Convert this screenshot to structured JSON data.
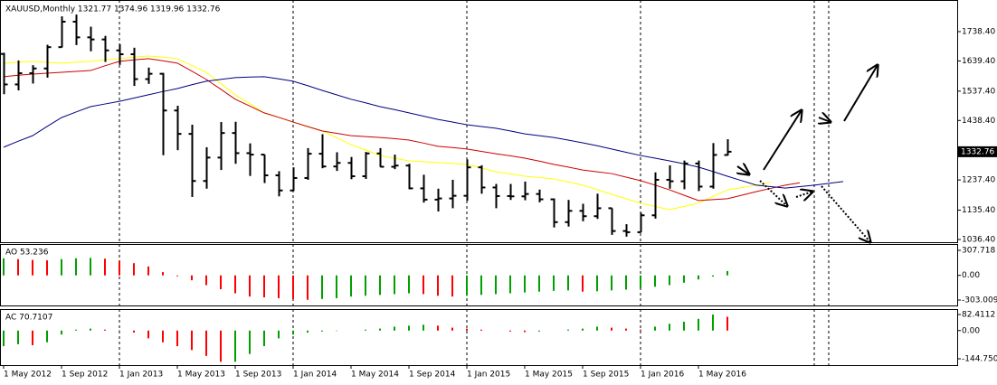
{
  "chart_data": [
    {
      "type": "ohlc",
      "title": "XAUUSD,Monthly  1321.77 1374.96 1319.96 1332.76",
      "categories": [
        "1 May 2012",
        null,
        null,
        null,
        "1 Sep 2012",
        null,
        null,
        null,
        "1 Jan 2013",
        null,
        null,
        null,
        "1 May 2013",
        null,
        null,
        null,
        "1 Sep 2013",
        null,
        null,
        null,
        "1 Jan 2014",
        null,
        null,
        null,
        "1 May 2014",
        null,
        null,
        null,
        "1 Sep 2014",
        null,
        null,
        null,
        "1 Jan 2015",
        null,
        null,
        null,
        "1 May 2015",
        null,
        null,
        null,
        "1 Sep 2015",
        null,
        null,
        null,
        "1 Jan 2016",
        null,
        null,
        null,
        "1 May 2016",
        null,
        null,
        null,
        null,
        null,
        null,
        null,
        null,
        null,
        null,
        null
      ],
      "open": [
        1663,
        1560,
        1598,
        1614,
        1686,
        1772,
        1719,
        1712,
        1675,
        1662,
        1578,
        1596,
        1472,
        1393,
        1234,
        1313,
        1396,
        1328,
        1323,
        1253,
        1202,
        1244,
        1326,
        1283,
        1295,
        1250,
        1327,
        1282,
        1286,
        1209,
        1171,
        1175,
        1184,
        1280,
        1212,
        1183,
        1182,
        1190,
        1172,
        1095,
        1133,
        1115,
        1142,
        1065,
        1061,
        1118,
        1238,
        1233,
        1293,
        1215,
        1321.77,
        null,
        null,
        null,
        null,
        null,
        null,
        null,
        null,
        null
      ],
      "high": [
        1667,
        1641,
        1625,
        1694,
        1790,
        1796,
        1755,
        1724,
        1696,
        1684,
        1617,
        1599,
        1488,
        1424,
        1348,
        1433,
        1434,
        1361,
        1323,
        1267,
        1280,
        1345,
        1392,
        1331,
        1315,
        1332,
        1345,
        1323,
        1292,
        1255,
        1208,
        1238,
        1307,
        1287,
        1224,
        1224,
        1232,
        1205,
        1175,
        1170,
        1157,
        1191,
        1142,
        1088,
        1127,
        1263,
        1287,
        1303,
        1303,
        1362,
        1374.96,
        null,
        null,
        null,
        null,
        null,
        null,
        null,
        null,
        null
      ],
      "low": [
        1527,
        1540,
        1563,
        1583,
        1685,
        1693,
        1672,
        1636,
        1626,
        1555,
        1562,
        1321,
        1338,
        1180,
        1208,
        1271,
        1292,
        1251,
        1227,
        1182,
        1200,
        1238,
        1277,
        1268,
        1240,
        1241,
        1281,
        1274,
        1206,
        1161,
        1131,
        1142,
        1167,
        1191,
        1142,
        1170,
        1169,
        1162,
        1077,
        1080,
        1098,
        1106,
        1052,
        1046,
        1061,
        1107,
        1208,
        1206,
        1200,
        1208,
        1319.96,
        null,
        null,
        null,
        null,
        null,
        null,
        null,
        null,
        null
      ],
      "close": [
        1560,
        1598,
        1614,
        1686,
        1772,
        1719,
        1712,
        1675,
        1662,
        1578,
        1596,
        1472,
        1393,
        1234,
        1313,
        1396,
        1328,
        1323,
        1253,
        1202,
        1244,
        1326,
        1283,
        1295,
        1250,
        1327,
        1282,
        1286,
        1209,
        1171,
        1175,
        1184,
        1280,
        1212,
        1183,
        1182,
        1190,
        1172,
        1095,
        1133,
        1115,
        1142,
        1065,
        1061,
        1118,
        1238,
        1233,
        1293,
        1215,
        1322,
        1332.76,
        null,
        null,
        null,
        null,
        null,
        null,
        null,
        null,
        null
      ],
      "bar_color": "#000000",
      "lines": [
        {
          "color": "#ffff00",
          "values": [
            1632,
            1635,
            1638,
            1635,
            1632,
            1635,
            1638,
            1643,
            1647,
            1652,
            1656,
            1652,
            1647,
            1624,
            1601,
            1563,
            1525,
            1495,
            1464,
            1449,
            1433,
            1418,
            1403,
            1380,
            1357,
            1339,
            1320,
            1311,
            1302,
            1299,
            1296,
            1293,
            1290,
            1278,
            1265,
            1258,
            1250,
            1246,
            1241,
            1231,
            1220,
            1205,
            1189,
            1174,
            1159,
            1148,
            1137,
            1148,
            1159,
            1182,
            1204,
            1212,
            1220,
            1230,
            null,
            null,
            null,
            null,
            null,
            null
          ]
        },
        {
          "color": "#cc0000",
          "values": [
            1586,
            1591,
            1595,
            1598,
            1601,
            1604,
            1607,
            1623,
            1638,
            1643,
            1647,
            1640,
            1632,
            1605,
            1577,
            1544,
            1510,
            1487,
            1464,
            1449,
            1433,
            1418,
            1403,
            1395,
            1387,
            1384,
            1381,
            1377,
            1372,
            1362,
            1351,
            1347,
            1342,
            1334,
            1326,
            1319,
            1311,
            1301,
            1290,
            1281,
            1271,
            1265,
            1259,
            1247,
            1235,
            1220,
            1204,
            1186,
            1168,
            1171,
            1174,
            1186,
            1198,
            1209,
            1220,
            1228,
            null,
            null,
            null,
            null
          ]
        },
        {
          "color": "#000080",
          "values": [
            1348,
            1368,
            1387,
            1418,
            1448,
            1467,
            1485,
            1494,
            1503,
            1514,
            1525,
            1536,
            1546,
            1559,
            1571,
            1577,
            1583,
            1585,
            1586,
            1579,
            1571,
            1556,
            1540,
            1525,
            1510,
            1498,
            1485,
            1475,
            1464,
            1453,
            1442,
            1433,
            1424,
            1418,
            1412,
            1403,
            1393,
            1387,
            1381,
            1372,
            1363,
            1353,
            1342,
            1331,
            1320,
            1311,
            1302,
            1292,
            1281,
            1266,
            1250,
            1235,
            1220,
            1215,
            1210,
            1215,
            1220,
            1226,
            1232,
            null
          ]
        }
      ],
      "ylim": [
        1027.2,
        1845.2
      ],
      "yticks": [
        {
          "value": 1738.4,
          "label": "1738.40"
        },
        {
          "value": 1639.4,
          "label": "1639.40"
        },
        {
          "value": 1537.4,
          "label": "1537.40"
        },
        {
          "value": 1438.4,
          "label": "1438.40"
        },
        {
          "value": 1237.4,
          "label": "1237.40"
        },
        {
          "value": 1135.4,
          "label": "1135.40"
        },
        {
          "value": 1036.4,
          "label": "1036.40"
        }
      ]
    },
    {
      "type": "bar",
      "title": "AO 53.236",
      "values": [
        210,
        200,
        190,
        185,
        200,
        210,
        215,
        205,
        180,
        150,
        110,
        40,
        -10,
        -60,
        -120,
        -170,
        -220,
        -260,
        -270,
        -280,
        -290,
        -300,
        -290,
        -280,
        -260,
        -250,
        -240,
        -230,
        -220,
        -230,
        -250,
        -260,
        -250,
        -240,
        -230,
        -220,
        -210,
        -200,
        -190,
        -185,
        -200,
        -195,
        -185,
        -175,
        -160,
        -140,
        -120,
        -90,
        -50,
        -15,
        53.236
      ],
      "up_color": "#00a000",
      "down_color": "#ff0000",
      "ylim": [
        -369.6,
        385.4
      ],
      "yticks": [
        307.718,
        {
          "value": 0,
          "label": "0.00"
        },
        -303.009
      ]
    },
    {
      "type": "bar",
      "title": "AC 70.7107",
      "values": [
        -80,
        -70,
        -75,
        -60,
        -20,
        5,
        10,
        5,
        2,
        -10,
        -40,
        -60,
        -80,
        -100,
        -130,
        -160,
        -160,
        -120,
        -80,
        -40,
        -20,
        -10,
        -5,
        -2,
        0,
        5,
        10,
        20,
        25,
        30,
        25,
        15,
        10,
        5,
        0,
        -5,
        -8,
        -5,
        0,
        5,
        10,
        20,
        15,
        10,
        5,
        20,
        35,
        45,
        60,
        82,
        70.7107
      ],
      "up_color": "#00a000",
      "down_color": "#ff0000",
      "ylim": [
        -177.2,
        110.2
      ],
      "yticks": [
        82.4112,
        {
          "value": 0,
          "label": "0.00"
        },
        -144.7504
      ]
    }
  ]
}
